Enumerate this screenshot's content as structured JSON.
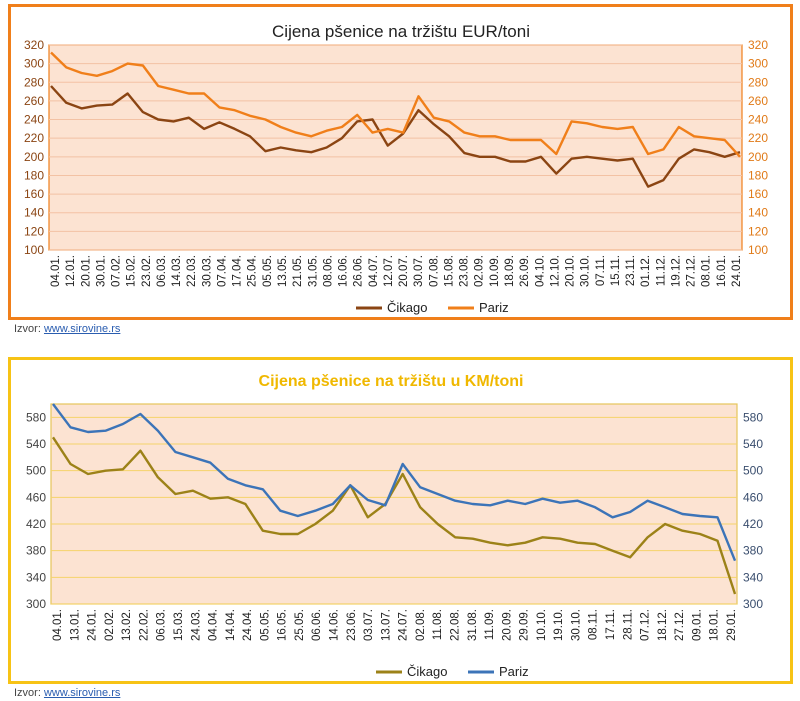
{
  "chart_data": [
    {
      "type": "line",
      "title": "Cijena pšenice na tržištu EUR/toni",
      "ylim": [
        100,
        320
      ],
      "yticks": [
        100,
        120,
        140,
        160,
        180,
        200,
        220,
        240,
        260,
        280,
        300,
        320
      ],
      "categories": [
        "04.01.",
        "12.01.",
        "20.01.",
        "30.01.",
        "07.02.",
        "15.02.",
        "23.02.",
        "06.03.",
        "14.03.",
        "22.03.",
        "30.03.",
        "07.04.",
        "17.04.",
        "25.04.",
        "05.05.",
        "13.05.",
        "21.05.",
        "31.05.",
        "08.06.",
        "16.06.",
        "26.06.",
        "04.07.",
        "12.07.",
        "20.07.",
        "30.07.",
        "07.08.",
        "15.08.",
        "23.08.",
        "02.09.",
        "10.09.",
        "18.09.",
        "26.09.",
        "04.10.",
        "12.10.",
        "20.10.",
        "30.10.",
        "07.11.",
        "15.11.",
        "23.11.",
        "01.12.",
        "11.12.",
        "19.12.",
        "27.12.",
        "08.01.",
        "16.01.",
        "24.01."
      ],
      "series": [
        {
          "name": "Čikago",
          "color": "#8b4513",
          "values": [
            276,
            258,
            252,
            255,
            256,
            268,
            248,
            240,
            238,
            242,
            230,
            237,
            230,
            222,
            206,
            210,
            207,
            205,
            210,
            220,
            238,
            240,
            212,
            225,
            250,
            235,
            222,
            204,
            200,
            200,
            195,
            195,
            200,
            182,
            198,
            200,
            198,
            196,
            198,
            168,
            175,
            198,
            208,
            205,
            200,
            205
          ]
        },
        {
          "name": "Pariz",
          "color": "#f07f1a",
          "values": [
            312,
            296,
            290,
            287,
            292,
            300,
            298,
            276,
            272,
            268,
            268,
            253,
            250,
            244,
            240,
            232,
            226,
            222,
            228,
            232,
            245,
            226,
            230,
            226,
            265,
            242,
            238,
            226,
            222,
            222,
            218,
            218,
            218,
            203,
            238,
            236,
            232,
            230,
            232,
            203,
            208,
            232,
            222,
            220,
            218,
            200
          ]
        }
      ]
    },
    {
      "type": "line",
      "title": "Cijena pšenice na tržištu u KM/toni",
      "ylim": [
        300,
        600
      ],
      "yticks": [
        300,
        340,
        380,
        420,
        460,
        500,
        540,
        580
      ],
      "categories": [
        "04.01.",
        "13.01.",
        "24.01.",
        "02.02.",
        "13.02.",
        "22.02.",
        "06.03.",
        "15.03.",
        "24.03.",
        "04.04.",
        "14.04.",
        "24.04.",
        "05.05.",
        "16.05.",
        "25.05.",
        "06.06.",
        "14.06.",
        "23.06.",
        "03.07.",
        "13.07.",
        "24.07.",
        "02.08.",
        "11.08.",
        "22.08.",
        "31.08.",
        "11.09.",
        "20.09.",
        "29.09.",
        "10.10.",
        "19.10.",
        "30.10.",
        "08.11.",
        "17.11.",
        "28.11.",
        "07.12.",
        "18.12.",
        "27.12.",
        "09.01.",
        "18.01.",
        "29.01."
      ],
      "series": [
        {
          "name": "Čikago",
          "color": "#9c8218",
          "values": [
            550,
            510,
            495,
            500,
            502,
            530,
            490,
            465,
            470,
            458,
            460,
            450,
            410,
            405,
            405,
            420,
            440,
            478,
            430,
            450,
            495,
            445,
            420,
            400,
            398,
            392,
            388,
            392,
            400,
            398,
            392,
            390,
            380,
            370,
            400,
            420,
            410,
            405,
            395,
            315
          ]
        },
        {
          "name": "Pariz",
          "color": "#3c74b8",
          "values": [
            600,
            565,
            558,
            560,
            570,
            585,
            560,
            528,
            520,
            512,
            488,
            478,
            472,
            440,
            432,
            440,
            450,
            478,
            456,
            448,
            510,
            475,
            465,
            455,
            450,
            448,
            455,
            450,
            458,
            452,
            455,
            445,
            430,
            438,
            455,
            445,
            435,
            432,
            430,
            365
          ]
        }
      ]
    }
  ],
  "source": {
    "label": "Izvor:",
    "url": "www.sirovine.rs"
  }
}
